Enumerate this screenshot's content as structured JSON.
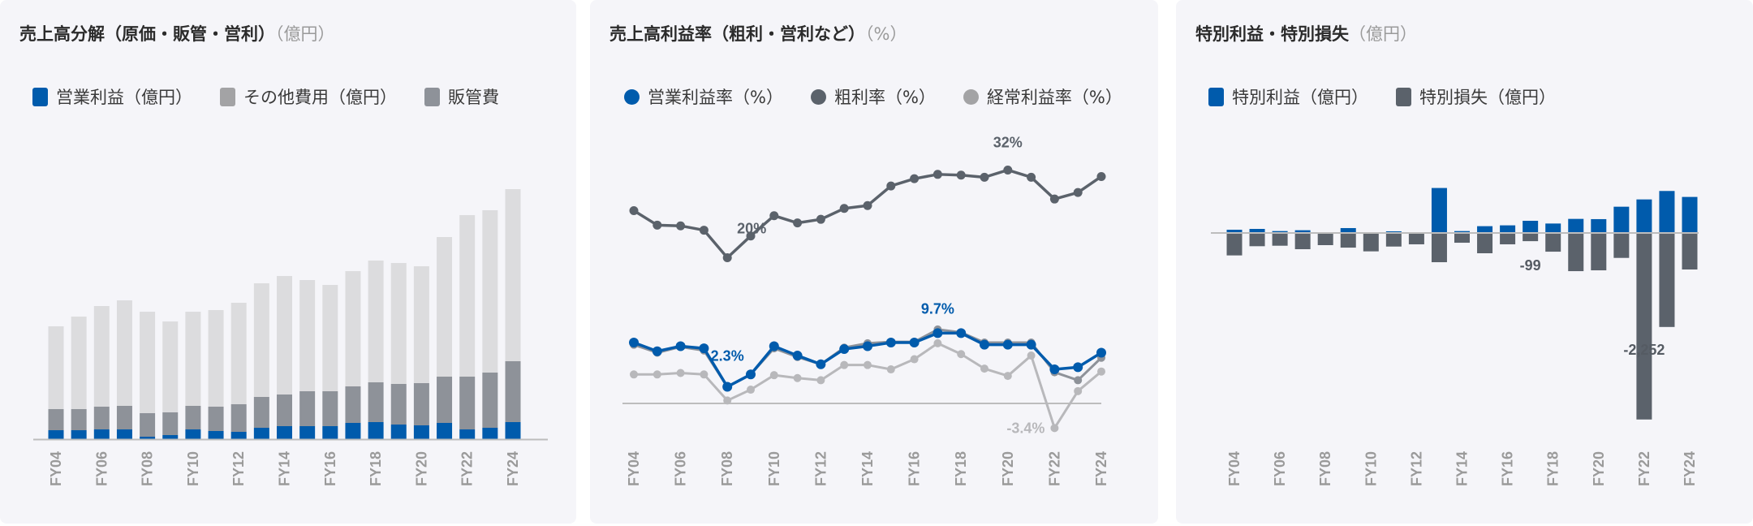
{
  "colors": {
    "blue": "#005bac",
    "dark": "#5b626b",
    "mid": "#8e9299",
    "light": "#dcdcde",
    "legend_other": "#a3a3a5",
    "ordinary": "#b8b8bb",
    "axis": "#bdbdbd"
  },
  "chart_data": [
    {
      "type": "bar",
      "stacked": true,
      "title": "売上高分解（原価・販管・営利）",
      "unit": "（億円）",
      "legend": [
        "営業利益（億円）",
        "その他費用（億円）",
        "販管費"
      ],
      "categories": [
        "FY04",
        "FY05",
        "FY06",
        "FY07",
        "FY08",
        "FY09",
        "FY10",
        "FY11",
        "FY12",
        "FY13",
        "FY14",
        "FY15",
        "FY16",
        "FY17",
        "FY18",
        "FY19",
        "FY20",
        "FY21",
        "FY22",
        "FY23",
        "FY24"
      ],
      "tick_labels": [
        "FY04",
        "FY06",
        "FY08",
        "FY10",
        "FY12",
        "FY14",
        "FY16",
        "FY18",
        "FY20",
        "FY22",
        "FY24"
      ],
      "series": [
        {
          "name": "営業利益（億円）",
          "values": [
            11,
            11,
            12,
            12,
            3,
            5,
            12,
            10,
            9,
            14,
            16,
            16,
            16,
            20,
            21,
            18,
            17,
            20,
            12,
            14,
            21
          ]
        },
        {
          "name": "販管費",
          "values": [
            26,
            26,
            28,
            29,
            29,
            28,
            29,
            30,
            34,
            38,
            39,
            43,
            43,
            45,
            49,
            50,
            52,
            57,
            65,
            68,
            75
          ]
        },
        {
          "name": "その他費用（億円）",
          "values": [
            102,
            114,
            124,
            130,
            125,
            112,
            116,
            119,
            125,
            140,
            146,
            137,
            131,
            142,
            150,
            149,
            144,
            172,
            199,
            200,
            212
          ]
        }
      ],
      "note": "relative values, no y-axis shown"
    },
    {
      "type": "line",
      "title": "売上高利益率（粗利・営利など）",
      "unit": "（%）",
      "legend": [
        "営業利益率（%）",
        "粗利率（%）",
        "経常利益率（%）"
      ],
      "categories": [
        "FY04",
        "FY05",
        "FY06",
        "FY07",
        "FY08",
        "FY09",
        "FY10",
        "FY11",
        "FY12",
        "FY13",
        "FY14",
        "FY15",
        "FY16",
        "FY17",
        "FY18",
        "FY19",
        "FY20",
        "FY21",
        "FY22",
        "FY23",
        "FY24"
      ],
      "tick_labels": [
        "FY04",
        "FY06",
        "FY08",
        "FY10",
        "FY12",
        "FY14",
        "FY16",
        "FY18",
        "FY20",
        "FY22",
        "FY24"
      ],
      "series": [
        {
          "name": "粗利率（%）",
          "values": [
            26.6,
            24.6,
            24.5,
            23.9,
            20.1,
            23.1,
            25.9,
            24.9,
            25.4,
            26.9,
            27.3,
            30.0,
            31.0,
            31.6,
            31.5,
            31.2,
            32.2,
            31.2,
            28.2,
            29.1,
            31.3
          ]
        },
        {
          "name": "経常利益率（%）",
          "values": [
            4.0,
            4.0,
            4.2,
            4.0,
            0.4,
            1.9,
            3.9,
            3.5,
            3.2,
            5.3,
            5.3,
            4.7,
            6.1,
            8.3,
            6.8,
            4.8,
            3.8,
            6.6,
            -3.4,
            1.7,
            4.4
          ]
        },
        {
          "name": "",
          "values": [
            8.1,
            7.0,
            7.8,
            7.3,
            2.3,
            4.0,
            7.6,
            6.4,
            5.4,
            7.7,
            8.3,
            8.5,
            8.5,
            10.2,
            9.8,
            8.4,
            8.4,
            8.4,
            4.3,
            3.2,
            6.3
          ]
        },
        {
          "name": "営業利益率（%）",
          "values": [
            8.4,
            7.2,
            7.9,
            7.6,
            2.3,
            4.0,
            7.9,
            6.6,
            5.4,
            7.5,
            7.9,
            8.4,
            8.4,
            9.7,
            9.7,
            8.1,
            8.1,
            8.1,
            4.7,
            5.0,
            7.0
          ]
        }
      ],
      "annotations": [
        {
          "series": "粗利率（%）",
          "category": "FY20",
          "text": "32%"
        },
        {
          "series": "粗利率（%）",
          "category": "FY08",
          "text": "20%"
        },
        {
          "series": "営業利益率（%）",
          "category": "FY17",
          "text": "9.7%"
        },
        {
          "series": "営業利益率（%）",
          "category": "FY08",
          "text": "2.3%"
        },
        {
          "series": "経常利益率（%）",
          "category": "FY22",
          "text": "-3.4%"
        }
      ],
      "ylim": [
        -5,
        34
      ]
    },
    {
      "type": "bar",
      "title": "特別利益・特別損失",
      "unit": "（億円）",
      "legend": [
        "特別利益（億円）",
        "特別損失（億円）"
      ],
      "categories": [
        "FY04",
        "FY05",
        "FY06",
        "FY07",
        "FY08",
        "FY09",
        "FY10",
        "FY11",
        "FY12",
        "FY13",
        "FY14",
        "FY15",
        "FY16",
        "FY17",
        "FY18",
        "FY19",
        "FY20",
        "FY21",
        "FY22",
        "FY23",
        "FY24"
      ],
      "tick_labels": [
        "FY04",
        "FY06",
        "FY08",
        "FY10",
        "FY12",
        "FY14",
        "FY16",
        "FY18",
        "FY20",
        "FY22",
        "FY24"
      ],
      "series": [
        {
          "name": "特別利益（億円）",
          "values": [
            39,
            49,
            23,
            33,
            2,
            59,
            7,
            20,
            2,
            543,
            23,
            82,
            92,
            147,
            114,
            170,
            167,
            317,
            405,
            507,
            435
          ]
        },
        {
          "name": "特別損失（億円）",
          "values": [
            -271,
            -160,
            -154,
            -196,
            -147,
            -177,
            -222,
            -164,
            -137,
            -353,
            -118,
            -245,
            -137,
            -99,
            -226,
            -461,
            -451,
            -301,
            -2252,
            -1135,
            -441
          ]
        }
      ],
      "annotations": [
        {
          "category": "FY17",
          "text": "-99"
        },
        {
          "category": "FY22",
          "text": "-2,252"
        }
      ]
    }
  ]
}
